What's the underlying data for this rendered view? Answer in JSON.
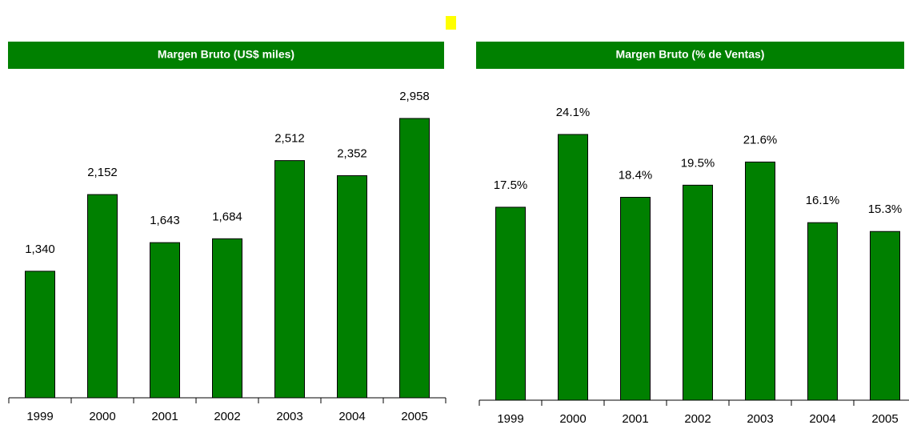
{
  "chart_data": [
    {
      "type": "bar",
      "title": "Margen Bruto (US$ miles)",
      "color": "#008000",
      "categories": [
        "1999",
        "2000",
        "2001",
        "2002",
        "2003",
        "2004",
        "2005"
      ],
      "values": [
        1340,
        2152,
        1643,
        1684,
        2512,
        2352,
        2958
      ],
      "value_labels": [
        "1,340",
        "2,152",
        "1,643",
        "1,684",
        "2,512",
        "2,352",
        "2,958"
      ]
    },
    {
      "type": "bar",
      "title": "Margen Bruto (% de Ventas)",
      "color": "#008000",
      "categories": [
        "1999",
        "2000",
        "2001",
        "2002",
        "2003",
        "2004",
        "2005"
      ],
      "values": [
        17.5,
        24.1,
        18.4,
        19.5,
        21.6,
        16.1,
        15.3
      ],
      "value_labels": [
        "17.5%",
        "24.1%",
        "18.4%",
        "19.5%",
        "21.6%",
        "16.1%",
        "15.3%"
      ]
    }
  ]
}
